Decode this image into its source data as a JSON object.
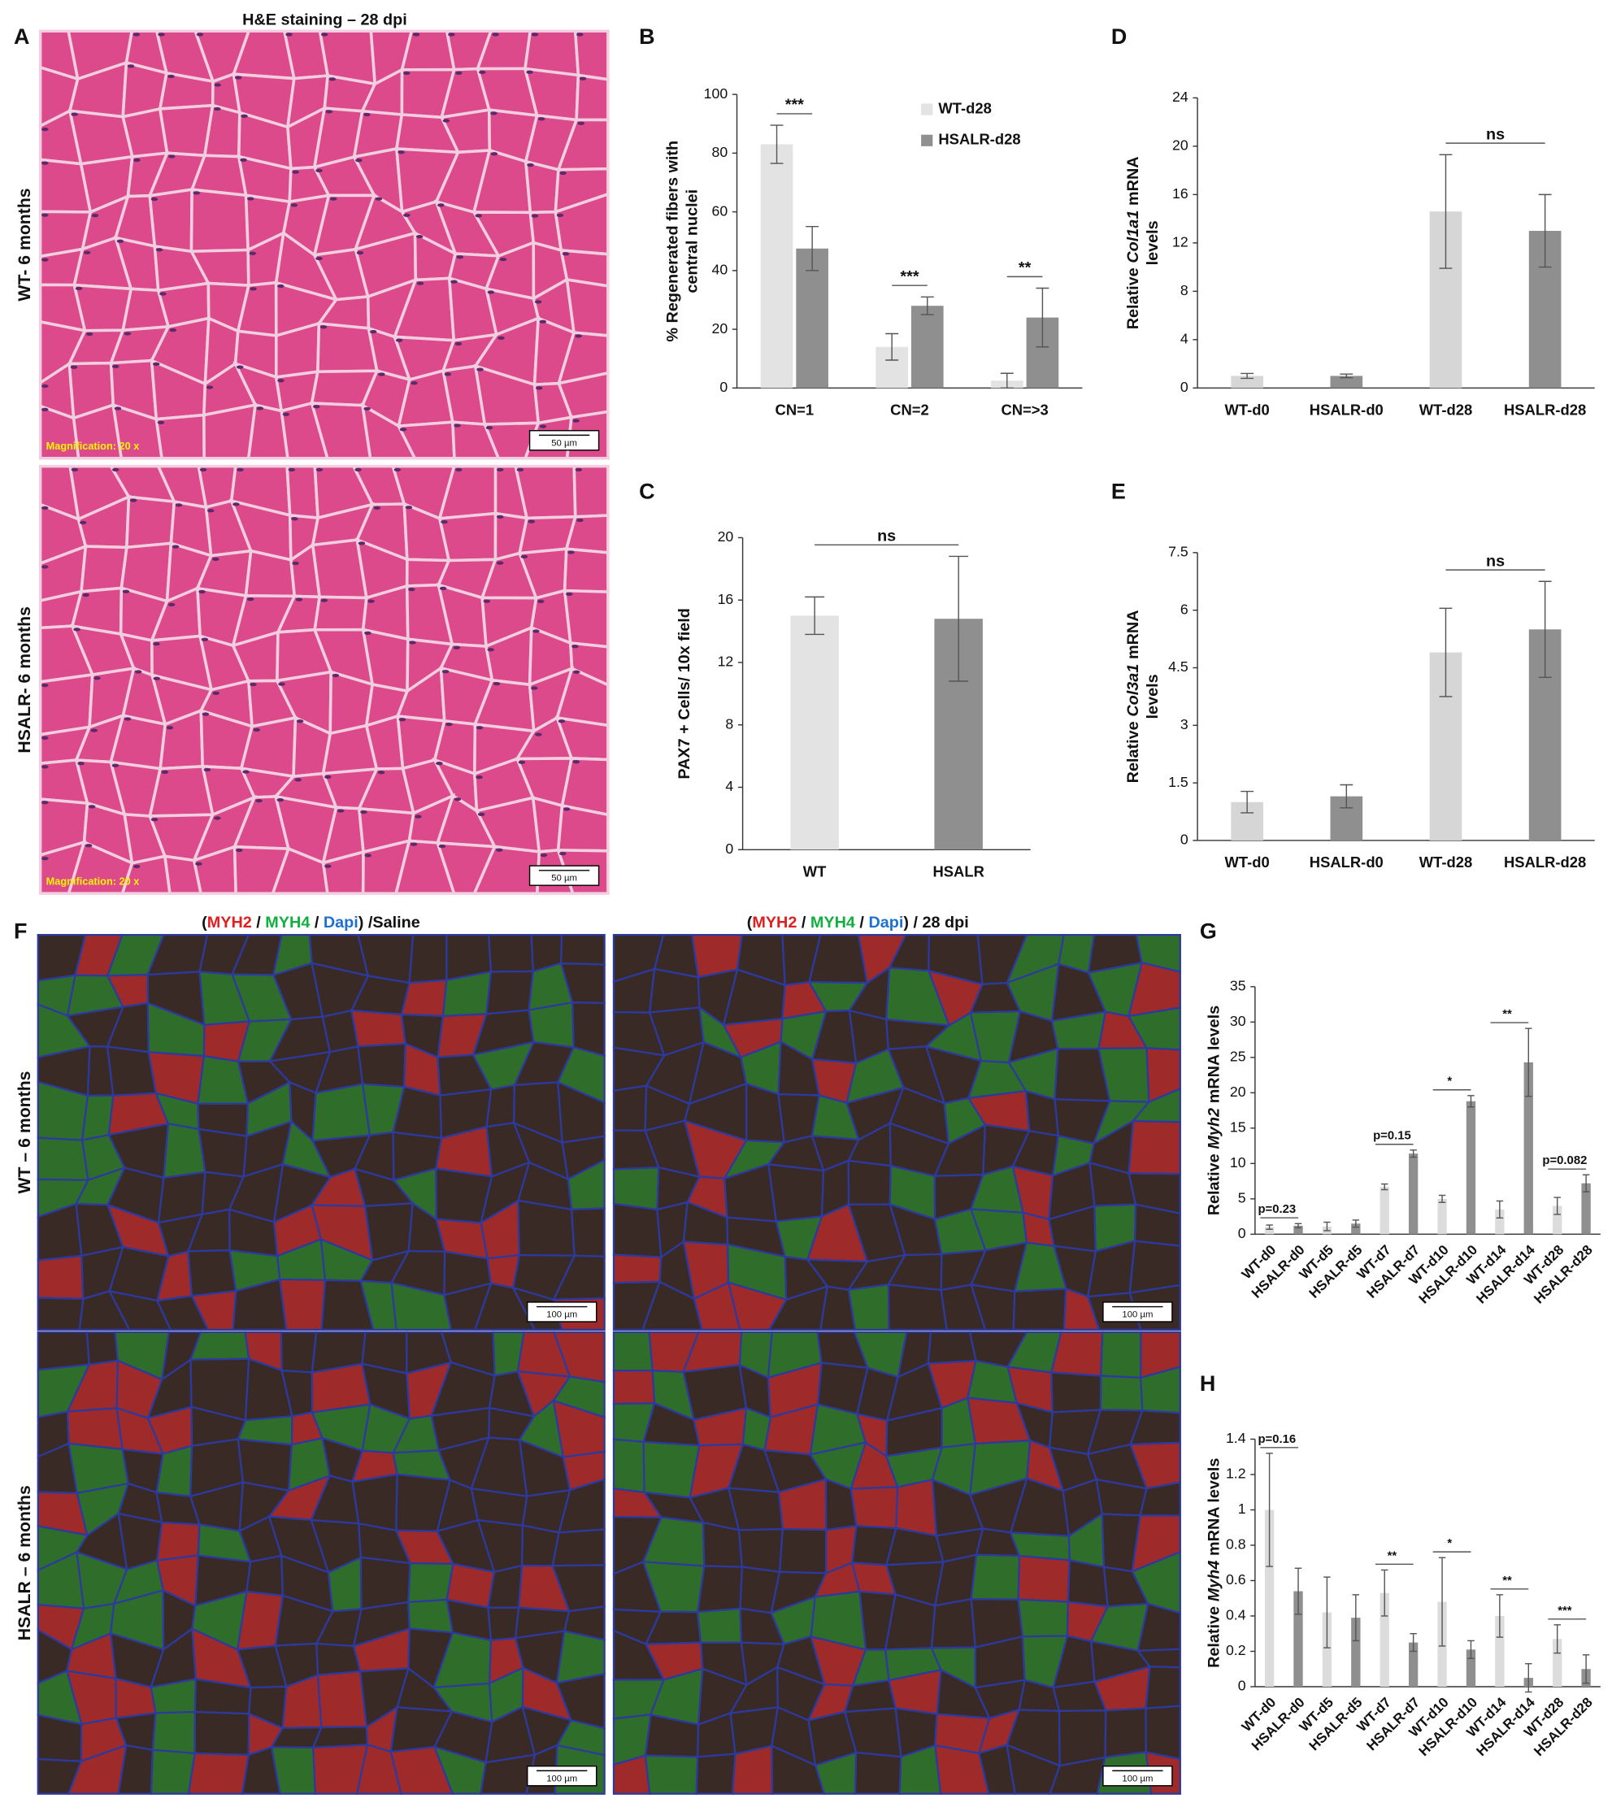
{
  "figure": {
    "panel_labels": [
      "A",
      "B",
      "C",
      "D",
      "E",
      "F",
      "G",
      "H"
    ],
    "he": {
      "title": "H&E staining – 28 dpi",
      "rows": [
        "WT- 6 months",
        "HSALR- 6 months"
      ],
      "magnification": "Magnification: 20 x",
      "scale_bar": "50 µm"
    },
    "if": {
      "titles": [
        [
          "(",
          "MYH2",
          " / ",
          "MYH4",
          " / ",
          "Dapi",
          ") /Saline"
        ],
        [
          "(",
          "MYH2",
          " / ",
          "MYH4",
          " / ",
          "Dapi",
          ") / 28 dpi"
        ]
      ],
      "rows": [
        "WT – 6 months",
        "HSALR – 6 months"
      ],
      "scale_bar": "100 µm"
    }
  },
  "chart_data": [
    {
      "type": "bar",
      "ylabel": [
        [
          "% Regenerated fibers with"
        ],
        [
          "central nuclei"
        ]
      ],
      "categories": [
        "CN=1",
        "CN=2",
        "CN=>3"
      ],
      "series": [
        {
          "name": "WT-d28",
          "color": "#e3e3e3",
          "values": [
            83,
            14,
            2.5
          ],
          "errors": [
            6.5,
            4.5,
            2.5
          ]
        },
        {
          "name": "HSALR-d28",
          "color": "#8f8f8f",
          "values": [
            47.5,
            28,
            24
          ],
          "errors": [
            7.5,
            3,
            10
          ]
        }
      ],
      "annotations": [
        "***",
        "***",
        "**"
      ],
      "ylim": [
        0,
        100
      ],
      "yticks": [
        0,
        20,
        40,
        60,
        80,
        100
      ]
    },
    {
      "type": "bar",
      "ylabel": [
        [
          "PAX7 + Cells/ 10x field"
        ]
      ],
      "categories": [
        "WT",
        "HSALR"
      ],
      "values": [
        15,
        14.8
      ],
      "errors": [
        1.2,
        4
      ],
      "colors": [
        "#e3e3e3",
        "#8f8f8f"
      ],
      "annotations": [
        "ns"
      ],
      "ylim": [
        0,
        20
      ],
      "yticks": [
        0,
        4,
        8,
        12,
        16,
        20
      ]
    },
    {
      "type": "bar",
      "ylabel": [
        [
          "Relative",
          "Col1a1",
          "mRNA"
        ],
        [
          "levels"
        ]
      ],
      "categories": [
        "WT-d0",
        "HSALR-d0",
        "WT-d28",
        "HSALR-d28"
      ],
      "values": [
        1,
        1,
        14.6,
        13
      ],
      "errors": [
        0.2,
        0.15,
        4.7,
        3
      ],
      "colors": [
        "#d6d6d6",
        "#8f8f8f",
        "#d6d6d6",
        "#8f8f8f"
      ],
      "annotations": [
        "ns"
      ],
      "ylim": [
        0,
        24
      ],
      "yticks": [
        0,
        4,
        8,
        12,
        16,
        20,
        24
      ]
    },
    {
      "type": "bar",
      "ylabel": [
        [
          "Relative",
          "Col3a1",
          "mRNA"
        ],
        [
          "levels"
        ]
      ],
      "categories": [
        "WT-d0",
        "HSALR-d0",
        "WT-d28",
        "HSALR-d28"
      ],
      "values": [
        1,
        1.15,
        4.9,
        5.5
      ],
      "errors": [
        0.28,
        0.3,
        1.15,
        1.25
      ],
      "colors": [
        "#d6d6d6",
        "#8f8f8f",
        "#d6d6d6",
        "#8f8f8f"
      ],
      "annotations": [
        "ns"
      ],
      "ylim": [
        0,
        7.5
      ],
      "yticks": [
        0,
        1.5,
        3,
        4.5,
        6,
        7.5
      ]
    },
    {
      "type": "bar",
      "ylabel": [
        [
          "Relative",
          "Myh2",
          "mRNA levels"
        ]
      ],
      "categories": [
        "WT-d0",
        "HSALR-d0",
        "WT-d5",
        "HSALR-d5",
        "WT-d7",
        "HSALR-d7",
        "WT-d10",
        "HSALR-d10",
        "WT-d14",
        "HSALR-d14",
        "WT-d28",
        "HSALR-d28"
      ],
      "values": [
        1,
        1.2,
        1.1,
        1.5,
        6.7,
        11.4,
        5,
        18.8,
        3.5,
        24.3,
        4,
        7.2
      ],
      "errors": [
        0.3,
        0.3,
        0.6,
        0.5,
        0.4,
        0.5,
        0.5,
        0.8,
        1.2,
        4.8,
        1.2,
        1.2
      ],
      "colors": [
        "#dcdcdc",
        "#8f8f8f",
        "#dcdcdc",
        "#8f8f8f",
        "#dcdcdc",
        "#8f8f8f",
        "#dcdcdc",
        "#8f8f8f",
        "#dcdcdc",
        "#8f8f8f",
        "#dcdcdc",
        "#8f8f8f"
      ],
      "annotations": [
        "p=0.23",
        null,
        "p=0.15",
        "*",
        "**",
        "p=0.082"
      ],
      "ylim": [
        0,
        35
      ],
      "yticks": [
        0,
        5,
        10,
        15,
        20,
        25,
        30,
        35
      ]
    },
    {
      "type": "bar",
      "ylabel": [
        [
          "Relative",
          "Myh4",
          "mRNA levels"
        ]
      ],
      "categories": [
        "WT-d0",
        "HSALR-d0",
        "WT-d5",
        "HSALR-d5",
        "WT-d7",
        "HSALR-d7",
        "WT-d10",
        "HSALR-d10",
        "WT-d14",
        "HSALR-d14",
        "WT-d28",
        "HSALR-d28"
      ],
      "values": [
        1,
        0.54,
        0.42,
        0.39,
        0.53,
        0.25,
        0.48,
        0.21,
        0.4,
        0.05,
        0.27,
        0.1
      ],
      "errors": [
        0.32,
        0.13,
        0.2,
        0.13,
        0.13,
        0.05,
        0.25,
        0.05,
        0.12,
        0.08,
        0.08,
        0.08
      ],
      "colors": [
        "#dcdcdc",
        "#8f8f8f",
        "#dcdcdc",
        "#8f8f8f",
        "#dcdcdc",
        "#8f8f8f",
        "#dcdcdc",
        "#8f8f8f",
        "#dcdcdc",
        "#8f8f8f",
        "#dcdcdc",
        "#8f8f8f"
      ],
      "annotations": [
        "p=0.16",
        null,
        "**",
        "*",
        "**",
        "***"
      ],
      "ylim": [
        0,
        1.4
      ],
      "yticks": [
        0,
        0.2,
        0.4,
        0.6,
        0.8,
        1,
        1.2,
        1.4
      ]
    }
  ]
}
